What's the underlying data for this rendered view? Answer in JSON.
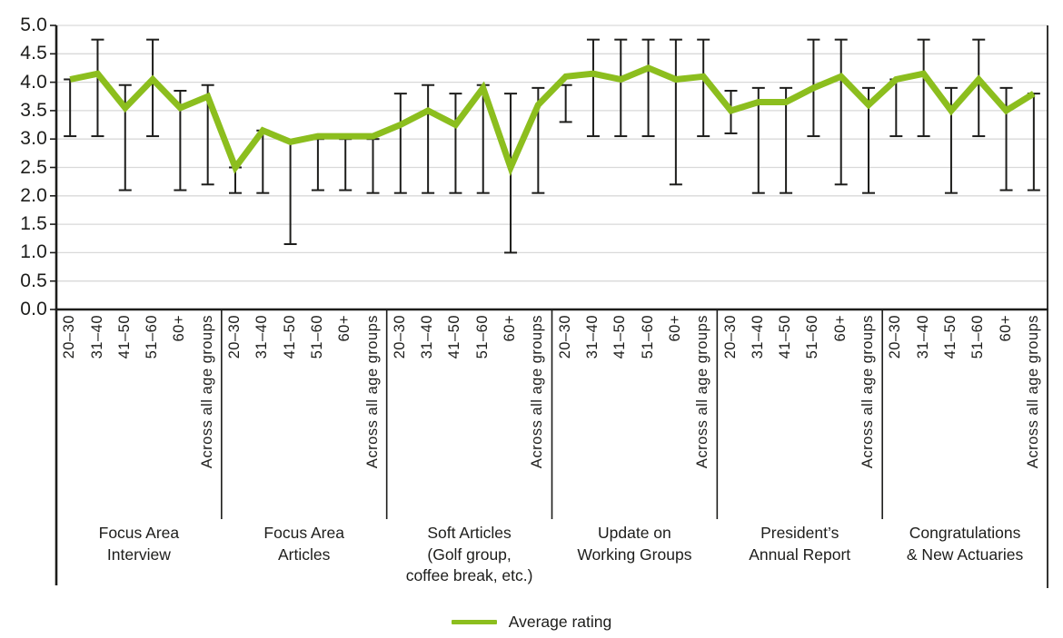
{
  "chart_data": {
    "type": "line",
    "title": "",
    "legend_label": "Average rating",
    "legend_position": "bottom-center",
    "line_color": "#8cbe1e",
    "axis_color": "#1d1d1b",
    "grid_color": "#d9d9d9",
    "grid": true,
    "y_axis": {
      "min": 0.0,
      "max": 5.0,
      "step": 0.5,
      "tick_labels": [
        "0.0",
        "0.5",
        "1.0",
        "1.5",
        "2.0",
        "2.5",
        "3.0",
        "3.5",
        "4.0",
        "4.5",
        "5.0"
      ]
    },
    "age_labels": [
      "20–30",
      "31–40",
      "41–50",
      "51–60",
      "60+",
      "Across all age groups"
    ],
    "series_note": "green line = average rating per age group; black whiskers = rating range (low/high) per age group",
    "groups": [
      {
        "label": "Focus Area Interview",
        "label_lines": [
          "Focus Area",
          "Interview"
        ],
        "values": [
          4.05,
          4.15,
          3.55,
          4.05,
          3.55,
          3.75
        ],
        "err_low": [
          3.05,
          3.05,
          2.1,
          3.05,
          2.1,
          2.2
        ],
        "err_high": [
          4.05,
          4.75,
          3.95,
          4.75,
          3.85,
          3.95
        ]
      },
      {
        "label": "Focus Area Articles",
        "label_lines": [
          "Focus Area",
          "Articles"
        ],
        "values": [
          2.5,
          3.15,
          2.95,
          3.05,
          3.05,
          3.05
        ],
        "err_low": [
          2.05,
          2.05,
          1.15,
          2.1,
          2.1,
          2.05
        ],
        "err_high": [
          2.5,
          3.15,
          2.95,
          3.0,
          3.0,
          3.0
        ]
      },
      {
        "label": "Soft Articles (Golf group, coffee break, etc.)",
        "label_lines": [
          "Soft Articles",
          "(Golf group,",
          "coffee break, etc.)"
        ],
        "values": [
          3.25,
          3.5,
          3.25,
          3.9,
          2.5,
          3.6
        ],
        "err_low": [
          2.05,
          2.05,
          2.05,
          2.05,
          1.0,
          2.05
        ],
        "err_high": [
          3.8,
          3.95,
          3.8,
          3.95,
          3.8,
          3.9
        ]
      },
      {
        "label": "Update on Working Groups",
        "label_lines": [
          "Update on",
          "Working Groups"
        ],
        "values": [
          4.1,
          4.15,
          4.05,
          4.25,
          4.05,
          4.1
        ],
        "err_low": [
          3.3,
          3.05,
          3.05,
          3.05,
          2.2,
          3.05
        ],
        "err_high": [
          3.95,
          4.75,
          4.75,
          4.75,
          4.75,
          4.75
        ]
      },
      {
        "label": "President’s Annual Report",
        "label_lines": [
          "President’s",
          "Annual Report"
        ],
        "values": [
          3.5,
          3.65,
          3.65,
          3.9,
          4.1,
          3.6
        ],
        "err_low": [
          3.1,
          2.05,
          2.05,
          3.05,
          2.2,
          2.05
        ],
        "err_high": [
          3.85,
          3.9,
          3.9,
          4.75,
          4.75,
          3.9
        ]
      },
      {
        "label": "Congratulations & New Actuaries",
        "label_lines": [
          "Congratulations",
          "& New Actuaries"
        ],
        "values": [
          4.05,
          4.15,
          3.5,
          4.05,
          3.5,
          3.8
        ],
        "err_low": [
          3.05,
          3.05,
          2.05,
          3.05,
          2.1,
          2.1
        ],
        "err_high": [
          4.05,
          4.75,
          3.9,
          4.75,
          3.9,
          3.8
        ]
      }
    ]
  }
}
